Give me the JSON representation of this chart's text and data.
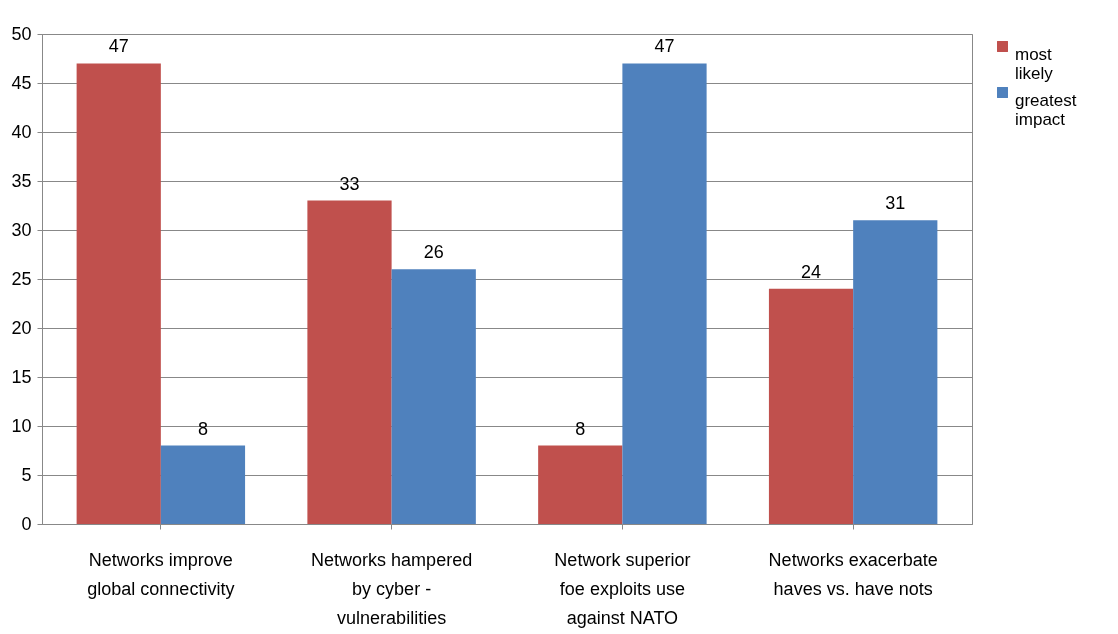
{
  "chart_data": {
    "type": "bar",
    "categories": [
      "Networks improve\nglobal connectivity",
      "Networks hampered\nby cyber -\nvulnerabilities",
      "Network superior\nfoe exploits use\nagainst NATO",
      "Networks exacerbate\nhaves  vs. have nots"
    ],
    "series": [
      {
        "name": "most likely",
        "color": "#c0504d",
        "values": [
          47,
          33,
          8,
          24
        ]
      },
      {
        "name": "greatest impact",
        "color": "#4f81bd",
        "values": [
          8,
          26,
          47,
          31
        ]
      }
    ],
    "ylim": [
      0,
      50
    ],
    "yticks": [
      0,
      5,
      10,
      15,
      20,
      25,
      30,
      35,
      40,
      45,
      50
    ],
    "grid": "y",
    "legend": "right",
    "data_labels": true
  }
}
